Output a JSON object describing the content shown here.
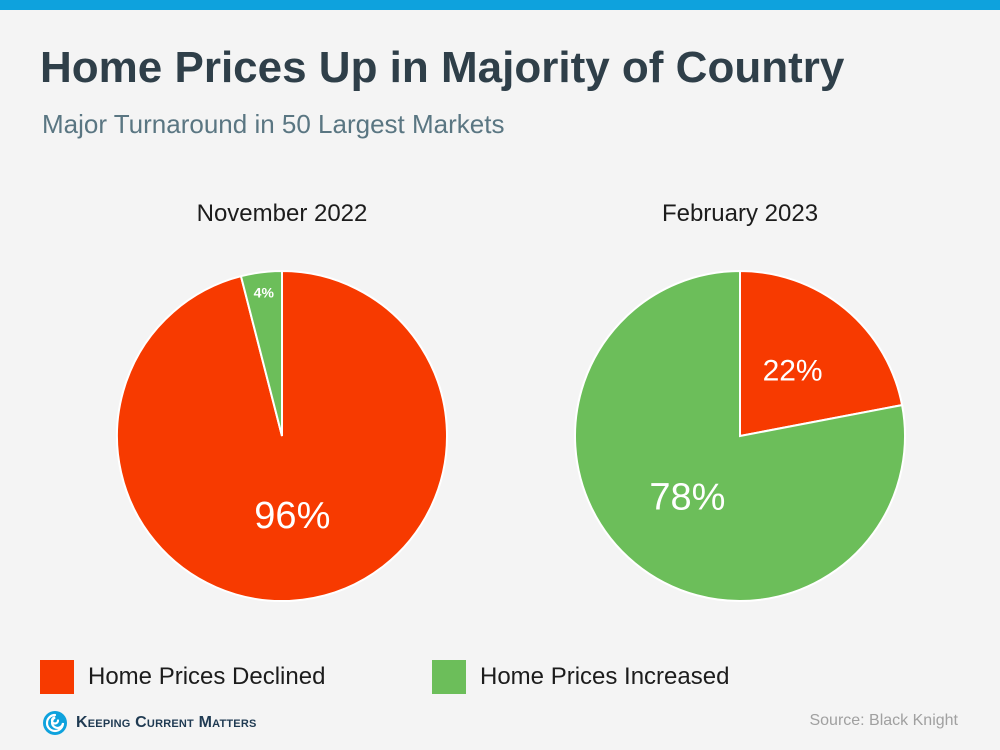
{
  "header": {
    "title": "Home Prices Up in Majority of Country",
    "subtitle": "Major Turnaround in 50 Largest Markets"
  },
  "colors": {
    "accent_bar": "#0ea2dd",
    "declined": "#f73a00",
    "increased": "#6cbe5a"
  },
  "legend": [
    {
      "label": "Home Prices Declined",
      "color": "#f73a00"
    },
    {
      "label": "Home Prices Increased",
      "color": "#6cbe5a"
    }
  ],
  "chart_data": [
    {
      "type": "pie",
      "title": "November 2022",
      "categories": [
        "Home Prices Declined",
        "Home Prices Increased"
      ],
      "values": [
        96,
        4
      ],
      "labels": [
        "96%",
        "4%"
      ],
      "colors": [
        "#f73a00",
        "#6cbe5a"
      ]
    },
    {
      "type": "pie",
      "title": "February 2023",
      "categories": [
        "Home Prices Declined",
        "Home Prices Increased"
      ],
      "values": [
        22,
        78
      ],
      "labels": [
        "22%",
        "78%"
      ],
      "colors": [
        "#f73a00",
        "#6cbe5a"
      ]
    }
  ],
  "footer": {
    "brand": "Keeping Current Matters",
    "logo_icon": "swirl-logo-icon",
    "source": "Source: Black Knight"
  }
}
